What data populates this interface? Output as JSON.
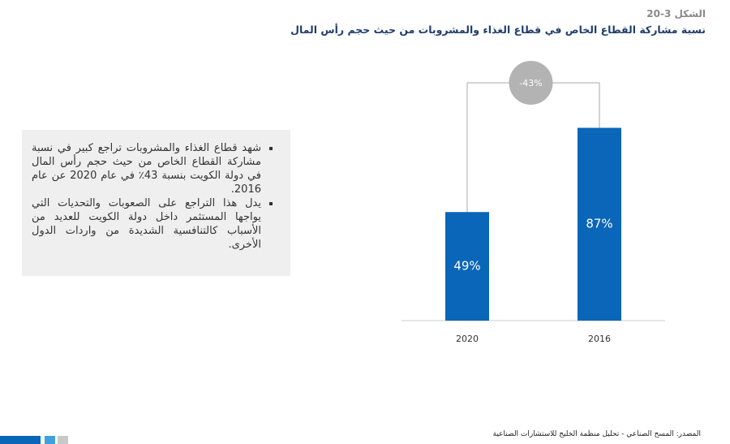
{
  "chart_data": {
    "type": "bar",
    "figure_label": "الشكل 3-20",
    "title": "نسبة مشاركة القطاع الخاص في قطاع الغذاء والمشروبات من حيث حجم رأس المال",
    "categories": [
      "2020",
      "2016"
    ],
    "values": [
      49,
      87
    ],
    "value_labels": [
      "49%",
      "87%"
    ],
    "color": "#0a66b8",
    "ylim": [
      0,
      100
    ],
    "annotation": "-43%"
  },
  "bullets": [
    "شهد قطاع الغذاء والمشروبات تراجع كبير في نسبة مشاركة القطاع الخاص من حيث حجم رأس المال في دولة الكويت بنسبة 43٪ في عام 2020 عن عام 2016.",
    "يدل هذا التراجع على الصعوبات والتحديات التي يواجها المستثمر داخل دولة الكويت للعديد من الأسباب كالتنافسية الشديدة من واردات الدول الأخرى."
  ],
  "source": "المصدر: المسح الصناعي - تحليل منظمة الخليج للاستشارات الصناعية"
}
